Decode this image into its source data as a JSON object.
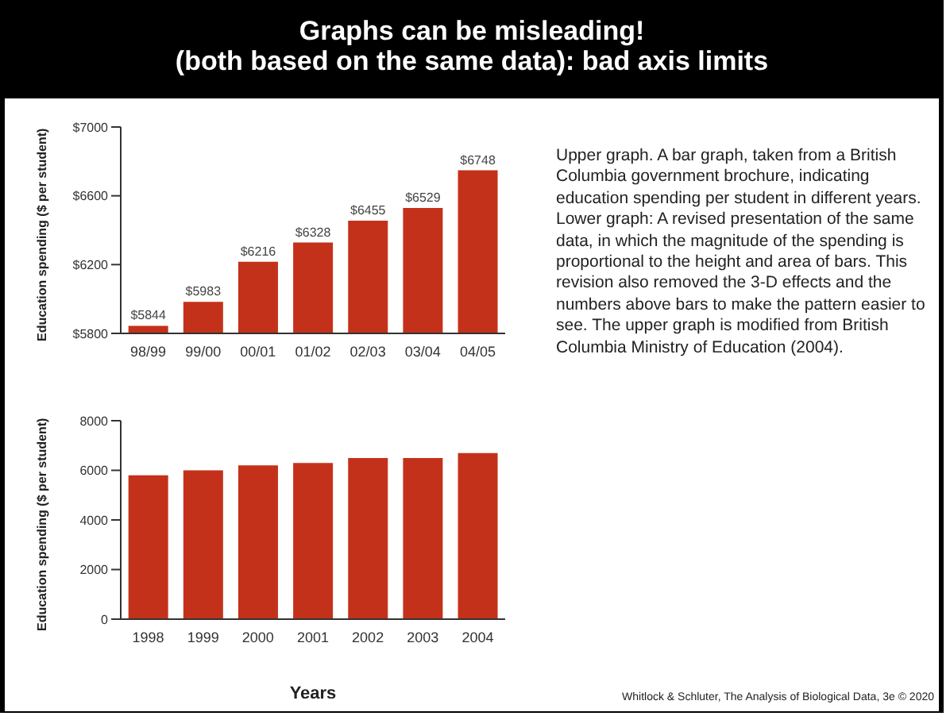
{
  "chart_data": [
    {
      "type": "bar",
      "title": "Graphs can be misleading!\n(both based on the same data): bad axis limits",
      "ylabel": "Education spending ($ per student)",
      "categories": [
        "98/99",
        "99/00",
        "00/01",
        "01/02",
        "02/03",
        "03/04",
        "04/05"
      ],
      "values": [
        5844,
        5983,
        6216,
        6328,
        6455,
        6529,
        6748
      ],
      "value_labels": [
        "$5844",
        "$5983",
        "$6216",
        "$6328",
        "$6455",
        "$6529",
        "$6748"
      ],
      "color": "#c4311b",
      "ylim": [
        5800,
        7000
      ],
      "yticks": [
        {
          "value": 5800,
          "label": "$5800"
        },
        {
          "value": 6200,
          "label": "$6200"
        },
        {
          "value": 6600,
          "label": "$6600"
        },
        {
          "value": 7000,
          "label": "$7000"
        }
      ]
    },
    {
      "type": "bar",
      "ylabel": "Education spending ($ per student)",
      "xlabel": "Years",
      "categories": [
        "1998",
        "1999",
        "2000",
        "2001",
        "2002",
        "2003",
        "2004"
      ],
      "values": [
        5800,
        6000,
        6200,
        6300,
        6500,
        6500,
        6700
      ],
      "color": "#c4311b",
      "ylim": [
        0,
        8000
      ],
      "yticks": [
        0,
        2000,
        4000,
        6000,
        8000
      ]
    },
    {
      "type": "other",
      "annotations": [
        "Upper graph. A bar graph, taken from a British Columbia government brochure, indicating education spending per student in different years. Lower graph: A revised presentation of the same data, in which the magnitude of the spending is proportional to the height and area of bars. This revision also removed the 3-D effects and the numbers above bars to make the pattern easier to see. The upper graph is modified from British Columbia Ministry of Education (2004).",
        "Whitlock & Schluter, The Analysis of Biological Data, 3e © 2020"
      ]
    }
  ]
}
